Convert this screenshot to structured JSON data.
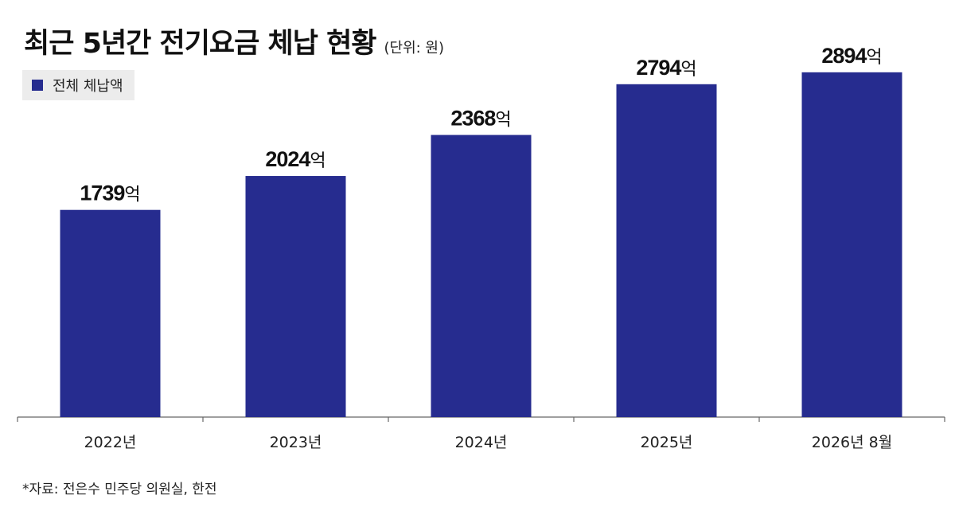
{
  "header": {
    "title": "최근 5년간 전기요금 체납 현황",
    "unit": "(단위: 원)"
  },
  "legend": {
    "label": "전체 체납액"
  },
  "colors": {
    "bar": "#262c8f",
    "legend_bg": "#ececec",
    "axis": "#666666"
  },
  "source": "*자료: 전은수 민주당 의원실, 한전",
  "chart_data": {
    "type": "bar",
    "categories": [
      "2022년",
      "2023년",
      "2024년",
      "2025년",
      "2026년 8월"
    ],
    "series": [
      {
        "name": "전체 체납액",
        "values": [
          1739,
          2024,
          2368,
          2794,
          2894
        ]
      }
    ],
    "value_labels": [
      "1739",
      "2024",
      "2368",
      "2794",
      "2894"
    ],
    "value_suffix": "억",
    "ylim": [
      0,
      3100
    ],
    "grid": false,
    "legend_position": "top-left"
  }
}
